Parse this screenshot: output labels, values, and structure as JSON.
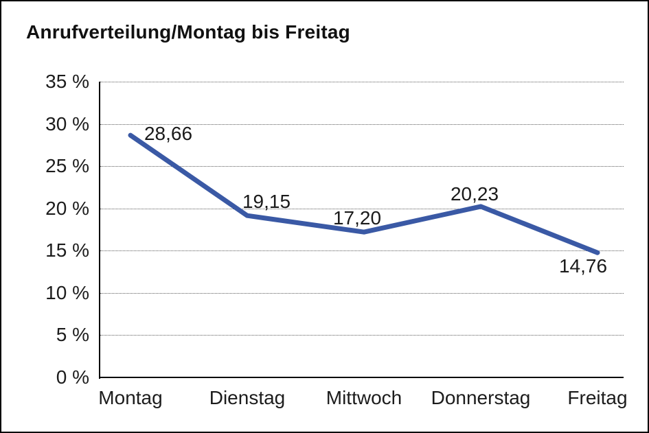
{
  "chart_data": {
    "type": "line",
    "title": "Anrufverteilung/Montag bis Freitag",
    "categories": [
      "Montag",
      "Dienstag",
      "Mittwoch",
      "Donnerstag",
      "Freitag"
    ],
    "values": [
      28.66,
      19.15,
      17.2,
      20.23,
      14.76
    ],
    "value_labels": [
      "28,66",
      "19,15",
      "17,20",
      "20,23",
      "14,76"
    ],
    "yticks": [
      0,
      5,
      10,
      15,
      20,
      25,
      30,
      35
    ],
    "ytick_labels": [
      "0 %",
      "5 %",
      "10 %",
      "15 %",
      "20 %",
      "25 %",
      "30 %",
      "35 %"
    ],
    "ylim": [
      0,
      35
    ],
    "xlabel": "",
    "ylabel": "",
    "grid": "horizontal-dotted",
    "legend": "none",
    "line_color": "#3A59A5",
    "grid_color": "#5a5a5a",
    "axis_color": "#000000",
    "text_color": "#1c1c1c"
  }
}
